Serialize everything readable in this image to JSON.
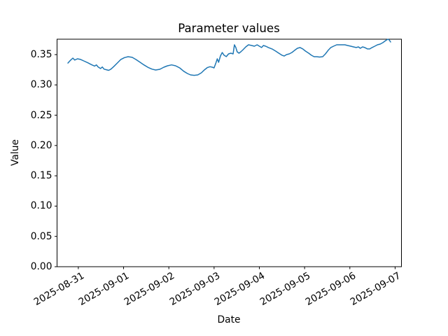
{
  "chart_data": {
    "type": "line",
    "title": "Parameter values",
    "xlabel": "Date",
    "ylabel": "Value",
    "grid": false,
    "legend_position": "none",
    "line_color": "#1f77b4",
    "axis_color": "#000000",
    "background_color": "#ffffff",
    "x_start_date": "2025-08-31",
    "x_tick_labels": [
      "2025-08-31",
      "2025-09-01",
      "2025-09-02",
      "2025-09-03",
      "2025-09-04",
      "2025-09-05",
      "2025-09-06",
      "2025-09-07"
    ],
    "x_tick_day_offsets": [
      0,
      1,
      2,
      3,
      4,
      5,
      6,
      7
    ],
    "y_tick_labels": [
      "0.00",
      "0.05",
      "0.10",
      "0.15",
      "0.20",
      "0.25",
      "0.30",
      "0.35"
    ],
    "y_tick_values": [
      0.0,
      0.05,
      0.1,
      0.15,
      0.2,
      0.25,
      0.3,
      0.35
    ],
    "xlim_day_offsets": [
      -0.47,
      7.14
    ],
    "ylim": [
      0,
      0.3754
    ],
    "series": [
      {
        "x_day_offsets": [
          -0.23,
          -0.18,
          -0.12,
          -0.08,
          -0.02,
          0.05,
          0.12,
          0.21,
          0.3,
          0.36,
          0.4,
          0.44,
          0.49,
          0.53,
          0.57,
          0.62,
          0.67,
          0.72,
          0.78,
          0.86,
          0.94,
          1.02,
          1.1,
          1.19,
          1.27,
          1.36,
          1.45,
          1.55,
          1.63,
          1.71,
          1.8,
          1.89,
          1.97,
          2.06,
          2.15,
          2.24,
          2.33,
          2.41,
          2.48,
          2.56,
          2.64,
          2.72,
          2.79,
          2.85,
          2.91,
          2.96,
          3.0,
          3.04,
          3.07,
          3.1,
          3.14,
          3.18,
          3.22,
          3.27,
          3.32,
          3.37,
          3.42,
          3.45,
          3.48,
          3.51,
          3.55,
          3.59,
          3.64,
          3.7,
          3.76,
          3.83,
          3.89,
          3.95,
          4.0,
          4.05,
          4.09,
          4.14,
          4.2,
          4.28,
          4.36,
          4.43,
          4.5,
          4.55,
          4.6,
          4.66,
          4.72,
          4.78,
          4.84,
          4.9,
          4.96,
          5.02,
          5.09,
          5.15,
          5.21,
          5.27,
          5.33,
          5.4,
          5.46,
          5.52,
          5.58,
          5.64,
          5.71,
          5.77,
          5.83,
          5.89,
          5.95,
          6.02,
          6.08,
          6.14,
          6.19,
          6.23,
          6.28,
          6.33,
          6.39,
          6.44,
          6.49,
          6.55,
          6.61,
          6.67,
          6.73,
          6.79,
          6.84,
          6.87,
          6.9
        ],
        "values": [
          0.336,
          0.34,
          0.3442,
          0.341,
          0.3431,
          0.342,
          0.3396,
          0.3365,
          0.333,
          0.331,
          0.333,
          0.3295,
          0.327,
          0.3295,
          0.326,
          0.325,
          0.324,
          0.326,
          0.33,
          0.336,
          0.342,
          0.345,
          0.3465,
          0.3455,
          0.342,
          0.3375,
          0.333,
          0.3285,
          0.326,
          0.3246,
          0.3257,
          0.3292,
          0.3315,
          0.333,
          0.3315,
          0.328,
          0.3225,
          0.3188,
          0.3165,
          0.3158,
          0.3165,
          0.32,
          0.325,
          0.3285,
          0.33,
          0.3292,
          0.328,
          0.3361,
          0.3431,
          0.3373,
          0.3477,
          0.3535,
          0.3489,
          0.3466,
          0.3512,
          0.3523,
          0.3512,
          0.3662,
          0.3616,
          0.3546,
          0.3523,
          0.3546,
          0.3581,
          0.3627,
          0.3662,
          0.365,
          0.3639,
          0.3662,
          0.3639,
          0.3616,
          0.365,
          0.3639,
          0.3616,
          0.3593,
          0.3558,
          0.3523,
          0.3489,
          0.3477,
          0.35,
          0.3512,
          0.3535,
          0.357,
          0.3604,
          0.3616,
          0.3593,
          0.3558,
          0.3523,
          0.3489,
          0.3465,
          0.3465,
          0.346,
          0.3465,
          0.3512,
          0.357,
          0.3616,
          0.3639,
          0.3662,
          0.3662,
          0.3662,
          0.3662,
          0.365,
          0.3639,
          0.3627,
          0.3616,
          0.3627,
          0.3604,
          0.3627,
          0.3616,
          0.3593,
          0.3593,
          0.3616,
          0.3639,
          0.3662,
          0.3673,
          0.3697,
          0.3731,
          0.3754,
          0.3743,
          0.3708
        ]
      }
    ]
  }
}
